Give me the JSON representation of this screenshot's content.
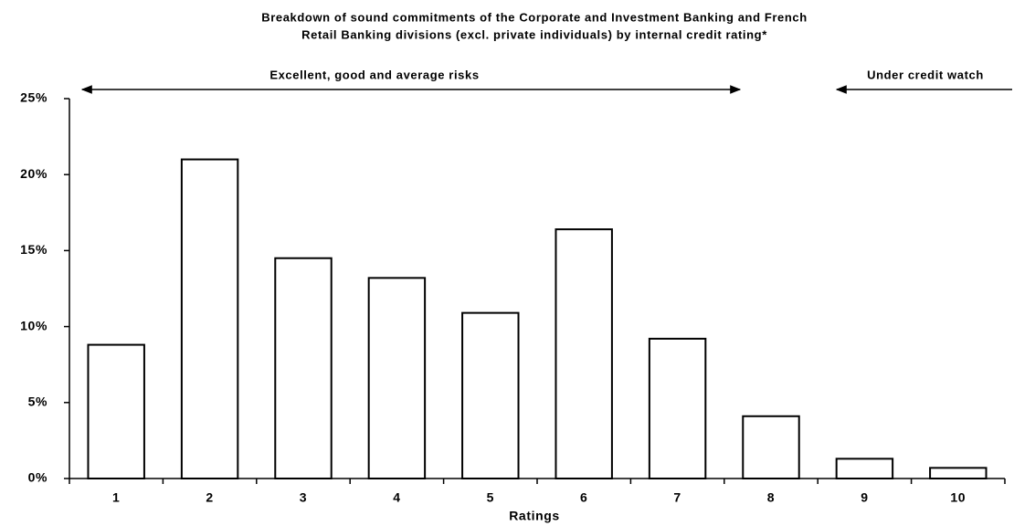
{
  "chart_data": {
    "type": "bar",
    "title": [
      "Breakdown of sound commitments of the Corporate and Investment Banking and French",
      "Retail Banking divisions (excl. private individuals) by internal credit rating*"
    ],
    "x_label": "Ratings",
    "annotations": [
      "Excellent, good and average risks",
      "Under credit watch"
    ],
    "categories": [
      "1",
      "2",
      "3",
      "4",
      "5",
      "6",
      "7",
      "8",
      "9",
      "10"
    ],
    "values": [
      8.8,
      21,
      14.5,
      13.2,
      10.9,
      16.4,
      9.2,
      4.1,
      1.3,
      0.7
    ],
    "color": "#ffffff",
    "ylim": [
      0,
      25
    ],
    "yticks": [
      {
        "value": 0,
        "label": "0%"
      },
      {
        "value": 5,
        "label": "5%"
      },
      {
        "value": 10,
        "label": "10%"
      },
      {
        "value": 15,
        "label": "15%"
      },
      {
        "value": 20,
        "label": "20%"
      },
      {
        "value": 25,
        "label": "25%"
      }
    ],
    "grid": false
  }
}
